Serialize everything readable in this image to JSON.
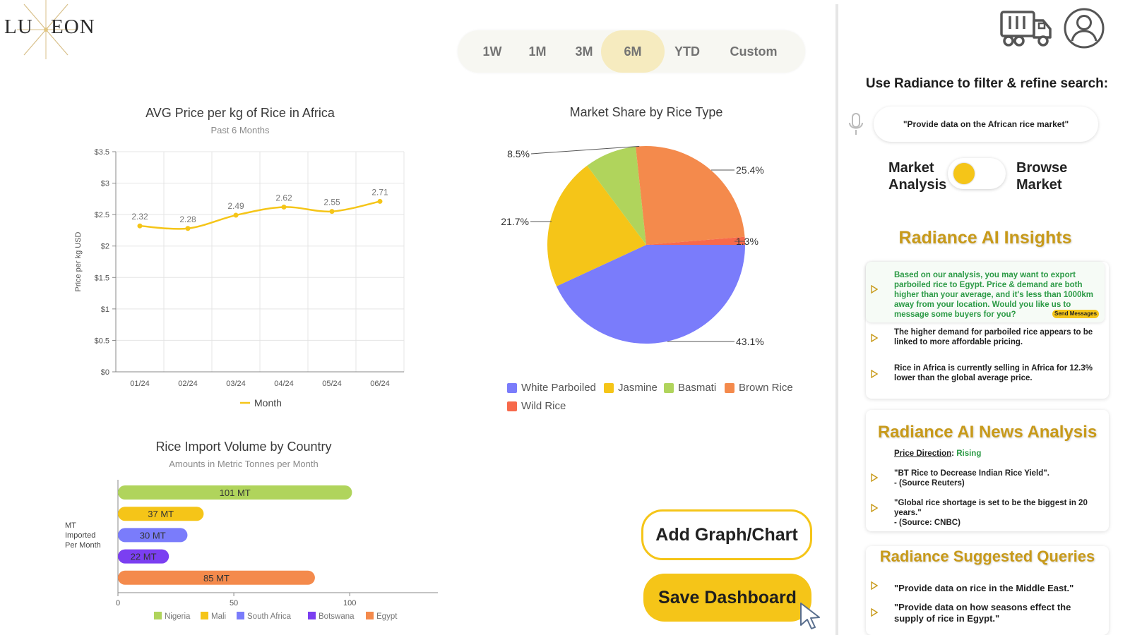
{
  "logo": {
    "text_left": "LU",
    "text_right": "EON"
  },
  "range": {
    "options": [
      {
        "label": "1W"
      },
      {
        "label": "1M"
      },
      {
        "label": "3M"
      },
      {
        "label": "6M"
      },
      {
        "label": "YTD"
      },
      {
        "label": "Custom"
      }
    ],
    "selected": "6M"
  },
  "line_chart": {
    "title": "AVG Price per kg of Rice in Africa",
    "subtitle": "Past 6 Months",
    "ylabel": "Price per kg USD",
    "legend": "Month",
    "y_tick_labels": [
      "$0",
      "$0.5",
      "$1",
      "$1.5",
      "$2",
      "$2.5",
      "$3",
      "$3.5"
    ]
  },
  "pie_chart": {
    "title": "Market Share by Rice Type"
  },
  "bar_chart": {
    "title": "Rice Import Volume by Country",
    "subtitle": "Amounts in Metric Tonnes per Month",
    "ylabel_lines": [
      "MT",
      "Imported",
      "Per Month"
    ]
  },
  "chart_data": [
    {
      "type": "line",
      "title": "AVG Price per kg of Rice in Africa",
      "subtitle": "Past 6 Months",
      "ylabel": "Price per kg USD",
      "x": [
        "01/24",
        "02/24",
        "03/24",
        "04/24",
        "05/24",
        "06/24"
      ],
      "series": [
        {
          "name": "Month",
          "values": [
            2.32,
            2.28,
            2.49,
            2.62,
            2.55,
            2.71
          ]
        }
      ],
      "ylim": [
        0,
        3.5
      ],
      "grid": true,
      "color": "#f5c518",
      "legend": "bottom"
    },
    {
      "type": "pie",
      "title": "Market Share by Rice Type",
      "slices": [
        {
          "label": "White Parboiled",
          "value": 43.1,
          "color": "#7a7cfb"
        },
        {
          "label": "Jasmine",
          "value": 21.7,
          "color": "#f5c518"
        },
        {
          "label": "Basmati",
          "value": 8.5,
          "color": "#b0d45c"
        },
        {
          "label": "Brown Rice",
          "value": 25.4,
          "color": "#f48a4c"
        },
        {
          "label": "Wild Rice",
          "value": 1.3,
          "color": "#f7694b"
        }
      ],
      "value_suffix": "%",
      "legend": "bottom"
    },
    {
      "type": "bar",
      "orientation": "horizontal",
      "title": "Rice Import Volume by Country",
      "subtitle": "Amounts in Metric Tonnes per Month",
      "categories": [
        "Nigeria",
        "Mali",
        "South Africa",
        "Botswana",
        "Egypt"
      ],
      "values": [
        101,
        37,
        30,
        22,
        85
      ],
      "value_suffix": " MT",
      "colors": [
        "#b0d45c",
        "#f5c518",
        "#7a7cfb",
        "#7b3ff1",
        "#f48a4c"
      ],
      "xlim": [
        0,
        135
      ],
      "x_ticks": [
        0,
        50,
        100
      ],
      "legend": "bottom"
    }
  ],
  "actions": {
    "add_label": "Add Graph/Chart",
    "save_label": "Save Dashboard"
  },
  "right_panel": {
    "filter_label": "Use Radiance to filter & refine search:",
    "search_value": "\"Provide data on the African rice market\"",
    "toggle_left": [
      "Market",
      "Analysis"
    ],
    "toggle_right": [
      "Browse",
      "Market"
    ],
    "insights_title": "Radiance AI Insights",
    "insights": [
      "Based on our analysis, you may want to export parboiled rice to Egypt. Price & demand are both higher than your average, and it's less than 1000km away from your location. Would you like us to message some buyers for you?",
      "The higher demand for parboiled rice appears to be linked to more affordable pricing.",
      "Rice in Africa is currently selling in Africa for 12.3% lower than the global average price."
    ],
    "send_messages": "Send Messages",
    "news_title": "Radiance AI News Analysis",
    "price_direction_label": "Price Direction",
    "price_direction_value": "Rising",
    "news": [
      {
        "quote": "\"BT Rice to Decrease Indian Rice Yield\".",
        "source": "- (Source Reuters)"
      },
      {
        "quote": "\"Global rice shortage is set to be the biggest in 20 years.\"",
        "source": "- (Source: CNBC)"
      }
    ],
    "queries_title": "Radiance Suggested Queries",
    "queries": [
      "\"Provide data on rice in the Middle East.\"",
      "\"Provide data on how seasons effect the supply of rice in Egypt.\""
    ]
  },
  "colors": {
    "accent": "#f5c518",
    "gold": "#c89a1a",
    "green": "#2b9a45"
  }
}
